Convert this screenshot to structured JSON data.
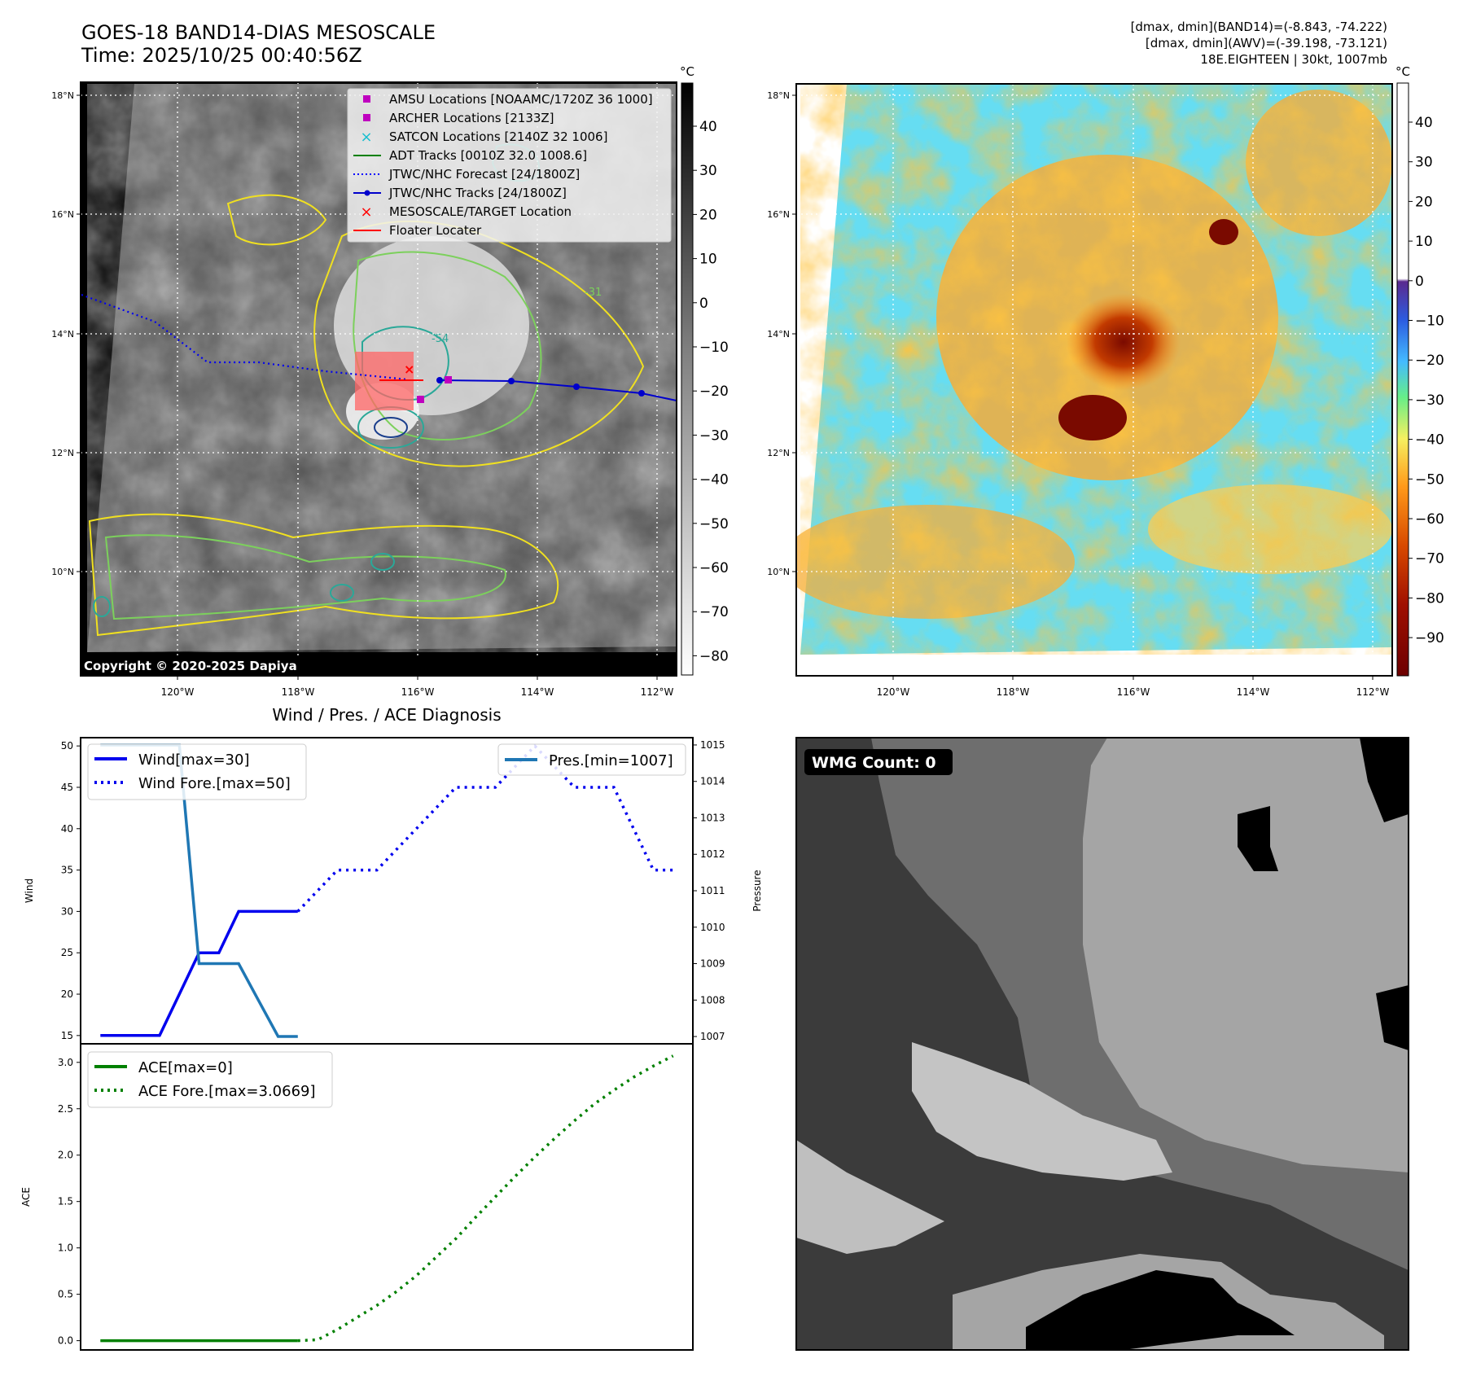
{
  "header": {
    "title_line1": "GOES-18 BAND14-DIAS MESOSCALE",
    "title_line2": "Time: 2025/10/25 00:40:56Z",
    "right_line1": "[dmax, dmin](BAND14)=(-8.843, -74.222)",
    "right_line2": "[dmax, dmin](AWV)=(-39.198, -73.121)",
    "right_line3": "18E.EIGHTEEN | 30kt, 1007mb"
  },
  "maps": {
    "lat_labels": [
      "18°N",
      "16°N",
      "14°N",
      "12°N",
      "10°N"
    ],
    "lon_labels": [
      "120°W",
      "118°W",
      "116°W",
      "114°W",
      "112°W"
    ],
    "copyright": "Copyright © 2020-2025 Dapiya",
    "contour_label": "-31",
    "contour_label_b": "-54"
  },
  "colorbar_left": {
    "unit": "°C",
    "ticks": [
      "40",
      "30",
      "20",
      "10",
      "0",
      "−10",
      "−20",
      "−30",
      "−40",
      "−50",
      "−60",
      "−70",
      "−80"
    ]
  },
  "colorbar_right": {
    "unit": "°C",
    "ticks": [
      "40",
      "30",
      "20",
      "10",
      "0",
      "−10",
      "−20",
      "−30",
      "−40",
      "−50",
      "−60",
      "−70",
      "−80",
      "−90"
    ]
  },
  "legend": {
    "items": [
      {
        "label": "AMSU Locations [NOAAMC/1720Z 36 1000]",
        "marker": "square",
        "color": "#bf00bf"
      },
      {
        "label": "ARCHER Locations [2133Z]",
        "marker": "square",
        "color": "#bf00bf"
      },
      {
        "label": "SATCON Locations [2140Z 32 1006]",
        "marker": "x",
        "color": "#17becf"
      },
      {
        "label": "ADT Tracks [0010Z 32.0 1008.6]",
        "marker": "line",
        "color": "#008000"
      },
      {
        "label": "JTWC/NHC Forecast [24/1800Z]",
        "marker": "dotted",
        "color": "#0000ff"
      },
      {
        "label": "JTWC/NHC Tracks [24/1800Z]",
        "marker": "line-dot",
        "color": "#0000cc"
      },
      {
        "label": "MESOSCALE/TARGET Location",
        "marker": "x",
        "color": "#ff0000"
      },
      {
        "label": "Floater Locater",
        "marker": "line",
        "color": "#ff0000"
      }
    ]
  },
  "wmg": {
    "label": "WMG Count: 0"
  },
  "chart_data": [
    {
      "type": "line",
      "title": "Wind / Pres. / ACE Diagnosis",
      "ylabel": "Wind",
      "ylabel_right": "Pressure",
      "ylim": [
        14,
        51
      ],
      "ylim_right": [
        1006.8,
        1015.2
      ],
      "y_ticks": [
        "50",
        "45",
        "40",
        "35",
        "30",
        "25",
        "20",
        "15"
      ],
      "y_ticks_right": [
        "1015",
        "1014",
        "1013",
        "1012",
        "1011",
        "1010",
        "1009",
        "1008",
        "1007"
      ],
      "xlim": [
        -1,
        30
      ],
      "series": [
        {
          "name": "Wind[max=30]",
          "axis": "left",
          "style": "solid",
          "color": "#0000ee",
          "x": [
            0,
            1,
            2,
            3,
            4,
            5,
            6,
            7,
            8,
            9,
            10
          ],
          "values": [
            15,
            15,
            15,
            15,
            20,
            25,
            25,
            30,
            30,
            30,
            30
          ]
        },
        {
          "name": "Wind Fore.[max=50]",
          "axis": "left",
          "style": "dotted",
          "color": "#0000ee",
          "x": [
            10,
            11,
            12,
            13,
            14,
            15,
            16,
            17,
            18,
            19,
            20,
            21,
            22,
            23,
            24,
            25,
            26,
            27,
            28,
            29
          ],
          "values": [
            30,
            32.5,
            35,
            35,
            35,
            37.5,
            40,
            42.5,
            45,
            45,
            45,
            47.5,
            50,
            47.5,
            45,
            45,
            45,
            40,
            35,
            35
          ]
        },
        {
          "name": "Pres.[min=1007]",
          "axis": "right",
          "style": "solid",
          "color": "#1f77b4",
          "x": [
            0,
            1,
            2,
            3,
            4,
            5,
            6,
            7,
            8,
            9,
            10
          ],
          "values": [
            1015,
            1015,
            1015,
            1015,
            1015,
            1009,
            1009,
            1009,
            1008,
            1007,
            1007
          ]
        }
      ]
    },
    {
      "type": "line",
      "ylabel": "ACE",
      "ylim": [
        -0.1,
        3.2
      ],
      "y_ticks": [
        "3.0",
        "2.5",
        "2.0",
        "1.5",
        "1.0",
        "0.5",
        "0.0"
      ],
      "xlim": [
        -1,
        30
      ],
      "series": [
        {
          "name": "ACE[max=0]",
          "style": "solid",
          "color": "#008000",
          "x": [
            0,
            1,
            2,
            3,
            4,
            5,
            6,
            7,
            8,
            9,
            10
          ],
          "values": [
            0,
            0,
            0,
            0,
            0,
            0,
            0,
            0,
            0,
            0,
            0
          ]
        },
        {
          "name": "ACE Fore.[max=3.0669]",
          "style": "dotted",
          "color": "#008000",
          "x": [
            10,
            11,
            12,
            13,
            14,
            15,
            16,
            17,
            18,
            19,
            20,
            21,
            22,
            23,
            24,
            25,
            26,
            27,
            28,
            29
          ],
          "values": [
            0,
            0.01,
            0.12,
            0.25,
            0.38,
            0.53,
            0.7,
            0.9,
            1.1,
            1.33,
            1.55,
            1.77,
            1.98,
            2.18,
            2.37,
            2.55,
            2.7,
            2.84,
            2.96,
            3.07
          ]
        }
      ]
    }
  ]
}
